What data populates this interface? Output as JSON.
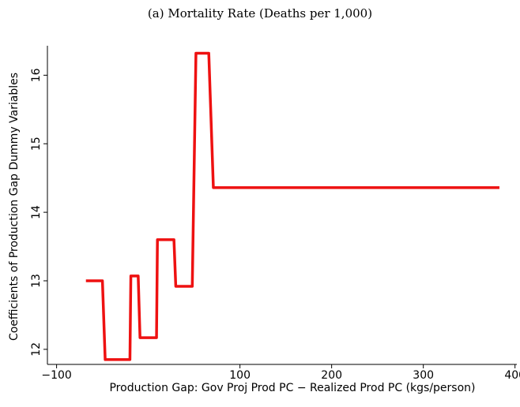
{
  "chart_data": {
    "type": "line",
    "title": "(a) Mortality Rate (Deaths per 1,000)",
    "x_label": "Production Gap:  Gov Proj Prod PC − Realized Prod PC (kgs/person)",
    "y_label": "Coefficients of Production Gap Dummy Variables",
    "x": [
      -68,
      -50,
      -47,
      -20,
      -19,
      -11,
      -9,
      9,
      10,
      28,
      30,
      48,
      52,
      66,
      71,
      383
    ],
    "series": [
      {
        "color": "#ee1111",
        "values": [
          13.0,
          13.0,
          11.85,
          11.85,
          13.07,
          13.07,
          12.17,
          12.17,
          13.6,
          13.6,
          12.92,
          12.92,
          16.32,
          16.32,
          14.36,
          14.36
        ]
      }
    ],
    "xlim": [
      -110,
      402
    ],
    "ylim": [
      11.78,
      16.43
    ],
    "xticks": [
      {
        "value": -100,
        "label": "−100"
      },
      100,
      200,
      300,
      400
    ],
    "yticks": [
      12,
      13,
      14,
      15,
      16
    ]
  }
}
